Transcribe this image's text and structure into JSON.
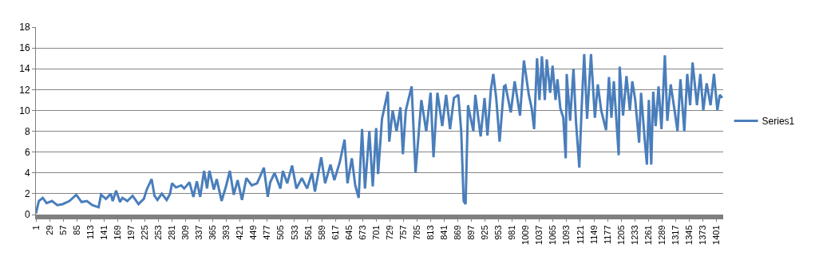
{
  "chart_data": {
    "type": "line",
    "grid": "y",
    "legend": "right",
    "marker": "none",
    "line_style": "solid",
    "xlim": [
      1,
      1415
    ],
    "xticks": [
      1,
      29,
      57,
      85,
      113,
      141,
      169,
      197,
      225,
      253,
      281,
      309,
      337,
      365,
      393,
      421,
      449,
      477,
      505,
      533,
      561,
      589,
      617,
      645,
      673,
      701,
      729,
      757,
      785,
      813,
      841,
      869,
      897,
      925,
      953,
      981,
      1009,
      1037,
      1065,
      1093,
      1121,
      1149,
      1177,
      1205,
      1233,
      1261,
      1289,
      1317,
      1345,
      1373,
      1401
    ],
    "ylim": [
      0,
      18
    ],
    "yticks": [
      0,
      2,
      4,
      6,
      8,
      10,
      12,
      14,
      16,
      18
    ],
    "series": [
      {
        "name": "Series1",
        "color": "#4a7ebb",
        "x": [
          1,
          7,
          15,
          23,
          34,
          45,
          56,
          70,
          84,
          95,
          106,
          117,
          130,
          135,
          145,
          155,
          159,
          166,
          174,
          179,
          189,
          200,
          212,
          223,
          229,
          239,
          245,
          251,
          260,
          270,
          277,
          281,
          289,
          300,
          306,
          317,
          325,
          332,
          339,
          347,
          353,
          358,
          367,
          373,
          383,
          392,
          400,
          408,
          416,
          425,
          434,
          445,
          456,
          470,
          478,
          483,
          492,
          504,
          509,
          518,
          528,
          537,
          548,
          559,
          569,
          575,
          588,
          596,
          607,
          615,
          626,
          636,
          642,
          651,
          658,
          665,
          672,
          678,
          687,
          694,
          701,
          705,
          713,
          725,
          728,
          735,
          743,
          751,
          756,
          762,
          774,
          782,
          794,
          804,
          813,
          819,
          827,
          837,
          845,
          853,
          861,
          870,
          876,
          881,
          885,
          890,
          901,
          905,
          916,
          924,
          930,
          937,
          942,
          948,
          955,
          964,
          967,
          978,
          986,
          997,
          1005,
          1015,
          1021,
          1026,
          1032,
          1037,
          1042,
          1048,
          1052,
          1059,
          1064,
          1070,
          1074,
          1080,
          1086,
          1091,
          1093,
          1100,
          1107,
          1112,
          1119,
          1124,
          1129,
          1135,
          1143,
          1151,
          1157,
          1164,
          1174,
          1180,
          1185,
          1190,
          1200,
          1202,
          1209,
          1216,
          1223,
          1228,
          1234,
          1242,
          1246,
          1253,
          1258,
          1262,
          1267,
          1271,
          1276,
          1282,
          1288,
          1295,
          1300,
          1307,
          1315,
          1321,
          1327,
          1335,
          1341,
          1347,
          1352,
          1361,
          1368,
          1374,
          1381,
          1389,
          1396,
          1403,
          1408,
          1413
        ],
        "values": [
          0.1,
          1.3,
          1.6,
          1.1,
          1.3,
          0.9,
          1.0,
          1.3,
          1.9,
          1.2,
          1.3,
          0.9,
          0.7,
          1.9,
          1.5,
          2.0,
          1.3,
          2.3,
          1.2,
          1.6,
          1.3,
          1.8,
          1.0,
          1.5,
          2.4,
          3.4,
          1.8,
          1.4,
          2.0,
          1.4,
          2.0,
          3.0,
          2.6,
          2.8,
          2.5,
          3.1,
          1.7,
          3.2,
          1.7,
          4.2,
          2.5,
          4.2,
          2.4,
          3.4,
          1.3,
          2.7,
          4.2,
          1.9,
          3.3,
          1.4,
          3.5,
          2.8,
          3.0,
          4.5,
          1.7,
          3.1,
          4.0,
          2.5,
          4.2,
          3.0,
          4.7,
          2.5,
          3.5,
          2.5,
          4.0,
          2.2,
          5.5,
          3.0,
          4.8,
          3.3,
          5.0,
          7.2,
          3.0,
          5.4,
          2.8,
          1.6,
          8.2,
          2.5,
          8.0,
          2.7,
          8.3,
          3.9,
          9.2,
          11.8,
          7.0,
          10.0,
          8.0,
          10.3,
          5.8,
          10.0,
          12.3,
          4.0,
          11.0,
          8.0,
          11.7,
          5.5,
          11.7,
          8.5,
          11.5,
          8.2,
          11.2,
          11.5,
          8.0,
          1.3,
          1.0,
          10.5,
          8.0,
          11.5,
          7.5,
          11.2,
          7.6,
          12.0,
          13.5,
          11.2,
          7.0,
          12.3,
          12.4,
          9.8,
          12.8,
          9.5,
          14.8,
          11.5,
          10.2,
          8.2,
          15.0,
          11.0,
          15.2,
          11.0,
          14.9,
          11.7,
          14.3,
          11.0,
          13.0,
          10.2,
          9.3,
          5.4,
          13.5,
          9.0,
          14.0,
          9.0,
          4.5,
          10.5,
          15.4,
          9.2,
          15.4,
          9.3,
          12.5,
          10.0,
          8.1,
          13.2,
          9.3,
          12.8,
          5.7,
          14.2,
          9.5,
          13.3,
          10.0,
          12.8,
          11.0,
          6.9,
          11.7,
          7.5,
          4.8,
          11.0,
          4.8,
          11.8,
          8.5,
          12.3,
          8.2,
          15.3,
          9.0,
          12.5,
          10.0,
          8.0,
          13.0,
          8.0,
          13.5,
          10.5,
          14.6,
          10.5,
          13.5,
          10.0,
          12.6,
          10.5,
          13.5,
          10.0,
          11.5,
          11.2
        ]
      }
    ]
  }
}
